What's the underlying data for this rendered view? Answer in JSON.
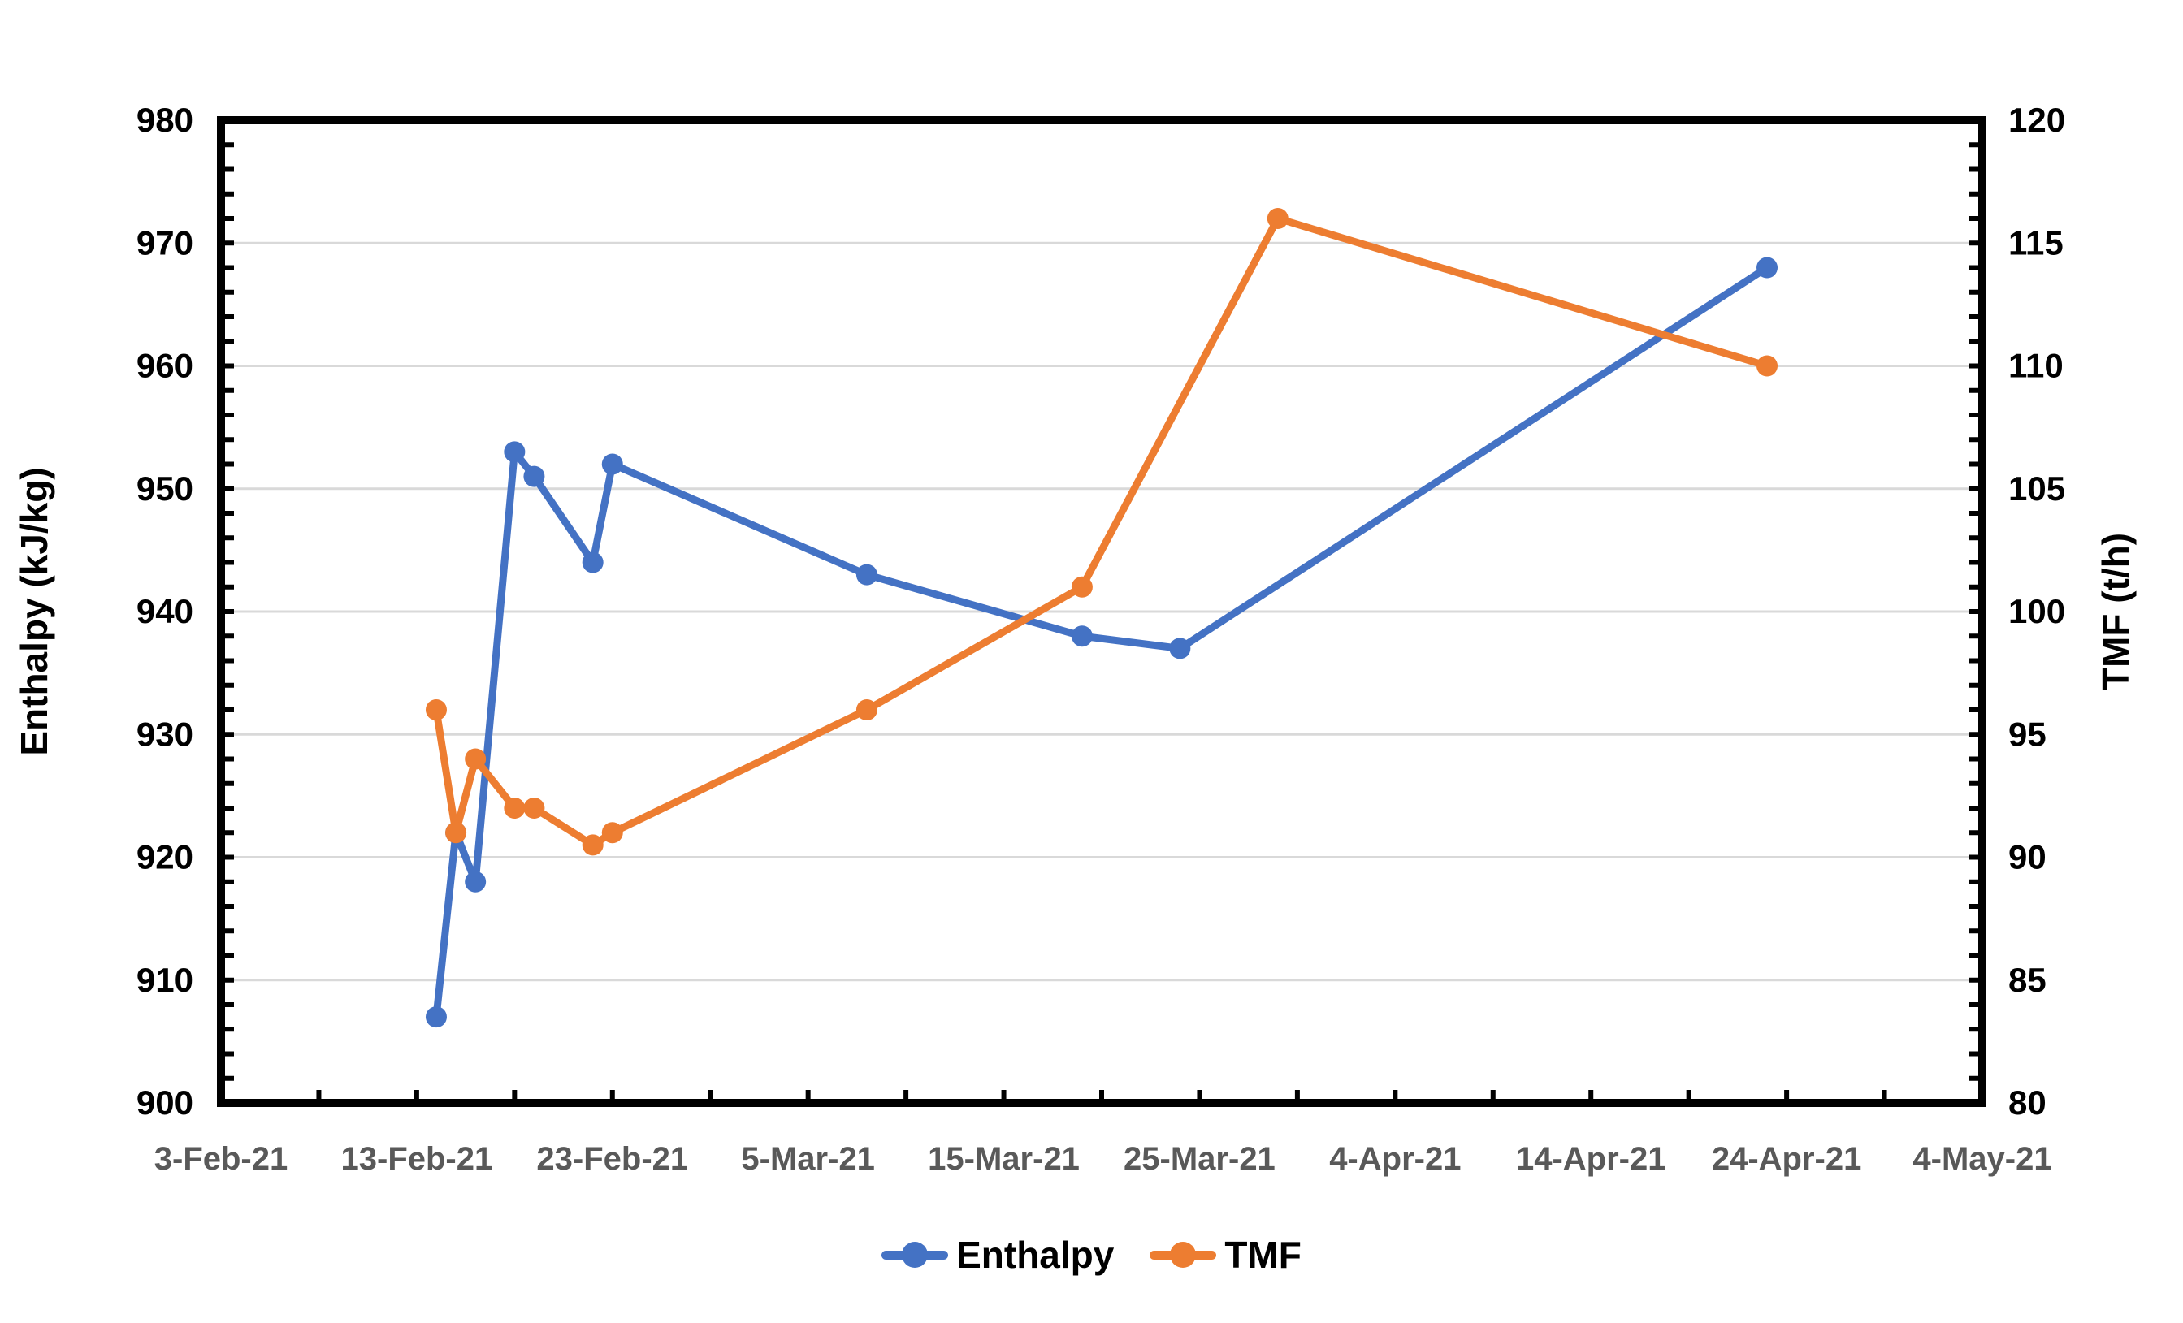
{
  "chart_data": {
    "type": "line",
    "title": "",
    "background": "#FFFFFF",
    "grid": true,
    "grid_color": "#D9D9D9",
    "axis_color": "#000000",
    "x_axis": {
      "tick_labels": [
        "3-Feb-21",
        "13-Feb-21",
        "23-Feb-21",
        "5-Mar-21",
        "15-Mar-21",
        "25-Mar-21",
        "4-Apr-21",
        "14-Apr-21",
        "24-Apr-21",
        "4-May-21"
      ],
      "tick_interval_days": 10,
      "minor_tick_interval_days": 5,
      "label_color": "#595959"
    },
    "y_left": {
      "title": "Enthalpy (kJ/kg)",
      "min": 900,
      "max": 980,
      "major_step": 10,
      "minor_step": 2,
      "tick_labels": [
        "900",
        "910",
        "920",
        "930",
        "940",
        "950",
        "960",
        "970",
        "980"
      ],
      "label_color": "#000000"
    },
    "y_right": {
      "title": "TMF (t/h)",
      "min": 80,
      "max": 120,
      "major_step": 5,
      "minor_step": 1,
      "tick_labels": [
        "80",
        "85",
        "90",
        "95",
        "100",
        "105",
        "110",
        "115",
        "120"
      ],
      "label_color": "#000000"
    },
    "legend": {
      "position": "bottom",
      "items": [
        {
          "label": "Enthalpy",
          "color": "#4472C4"
        },
        {
          "label": "TMF",
          "color": "#ED7D31"
        }
      ]
    },
    "series": [
      {
        "name": "Enthalpy",
        "axis": "left",
        "color": "#4472C4",
        "points": [
          {
            "date": "14-Feb-21",
            "value": 907
          },
          {
            "date": "15-Feb-21",
            "value": 922
          },
          {
            "date": "16-Feb-21",
            "value": 918
          },
          {
            "date": "18-Feb-21",
            "value": 953
          },
          {
            "date": "19-Feb-21",
            "value": 951
          },
          {
            "date": "22-Feb-21",
            "value": 944
          },
          {
            "date": "23-Feb-21",
            "value": 952
          },
          {
            "date": "8-Mar-21",
            "value": 943
          },
          {
            "date": "19-Mar-21",
            "value": 938
          },
          {
            "date": "24-Mar-21",
            "value": 937
          },
          {
            "date": "23-Apr-21",
            "value": 968
          }
        ]
      },
      {
        "name": "TMF",
        "axis": "right",
        "color": "#ED7D31",
        "points": [
          {
            "date": "14-Feb-21",
            "value": 96
          },
          {
            "date": "15-Feb-21",
            "value": 91
          },
          {
            "date": "16-Feb-21",
            "value": 94
          },
          {
            "date": "18-Feb-21",
            "value": 92
          },
          {
            "date": "19-Feb-21",
            "value": 92
          },
          {
            "date": "22-Feb-21",
            "value": 90.5
          },
          {
            "date": "23-Feb-21",
            "value": 91
          },
          {
            "date": "8-Mar-21",
            "value": 96
          },
          {
            "date": "19-Mar-21",
            "value": 101
          },
          {
            "date": "29-Mar-21",
            "value": 116
          },
          {
            "date": "23-Apr-21",
            "value": 110
          }
        ]
      }
    ]
  }
}
